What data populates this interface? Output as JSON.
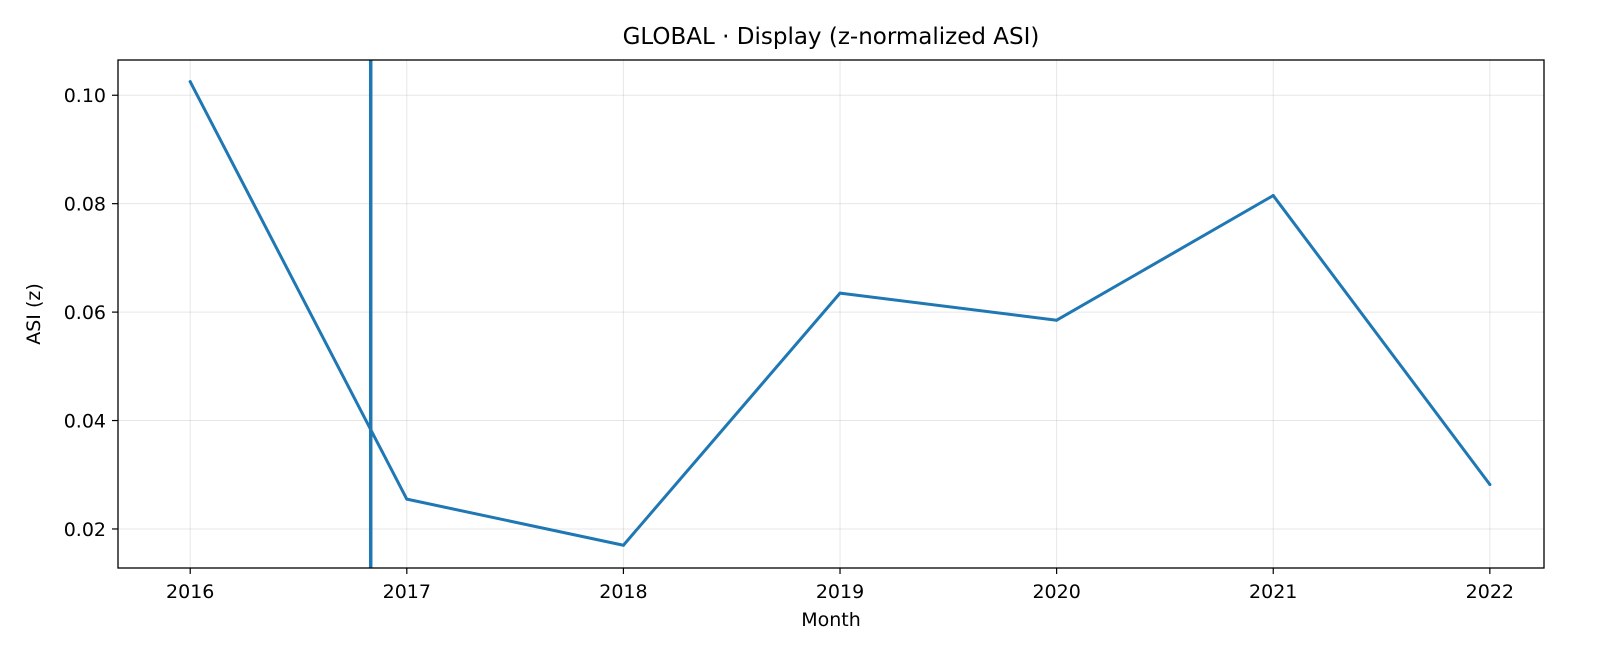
{
  "chart_data": {
    "type": "line",
    "title": "GLOBAL · Display (z-normalized ASI)",
    "xlabel": "Month",
    "ylabel": "ASI (z)",
    "x": [
      "2016",
      "2017",
      "2018",
      "2019",
      "2020",
      "2021",
      "2022"
    ],
    "xlim": [
      "2015-09",
      "2022-04"
    ],
    "ylim": [
      0.0128,
      0.1065
    ],
    "y_ticks": [
      "0.02",
      "0.04",
      "0.06",
      "0.08",
      "0.10"
    ],
    "y_tick_values": [
      0.02,
      0.04,
      0.06,
      0.08,
      0.1
    ],
    "series": [
      {
        "values": [
          0.1025,
          0.0255,
          0.017,
          0.0635,
          0.0585,
          0.0815,
          0.0282
        ]
      }
    ],
    "vertical_marker": "2016-11",
    "grid": true,
    "line_color": "#1f77b4"
  }
}
